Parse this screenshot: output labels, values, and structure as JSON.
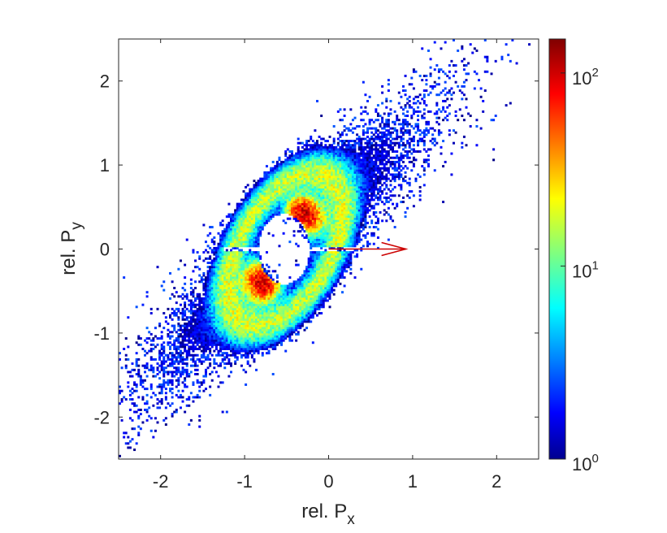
{
  "chart_data": {
    "type": "heatmap",
    "scale": "log",
    "xlabel": {
      "base": "rel. P",
      "sub": "x"
    },
    "ylabel": {
      "base": "rel. P",
      "sub": "y"
    },
    "xlim": [
      -2.5,
      2.5
    ],
    "ylim": [
      -2.5,
      2.5
    ],
    "xticks": [
      -2,
      -1,
      0,
      1,
      2
    ],
    "yticks": [
      -2,
      -1,
      0,
      1,
      2
    ],
    "colormap": "jet",
    "colorbar": {
      "min": 1,
      "max": 150,
      "ticks": [
        {
          "value": 1,
          "base": "10",
          "exp": "0"
        },
        {
          "value": 10,
          "base": "10",
          "exp": "1"
        },
        {
          "value": 100,
          "base": "10",
          "exp": "2"
        }
      ]
    },
    "lobes": [
      {
        "name": "upper",
        "cx": -0.25,
        "cy": 0.38,
        "peak": 150
      },
      {
        "name": "lower",
        "cx": -0.82,
        "cy": -0.36,
        "peak": 150
      }
    ],
    "arrow": {
      "from": [
        0.0,
        0.0
      ],
      "to": [
        0.92,
        0.0
      ],
      "color": "#cc0000"
    }
  }
}
